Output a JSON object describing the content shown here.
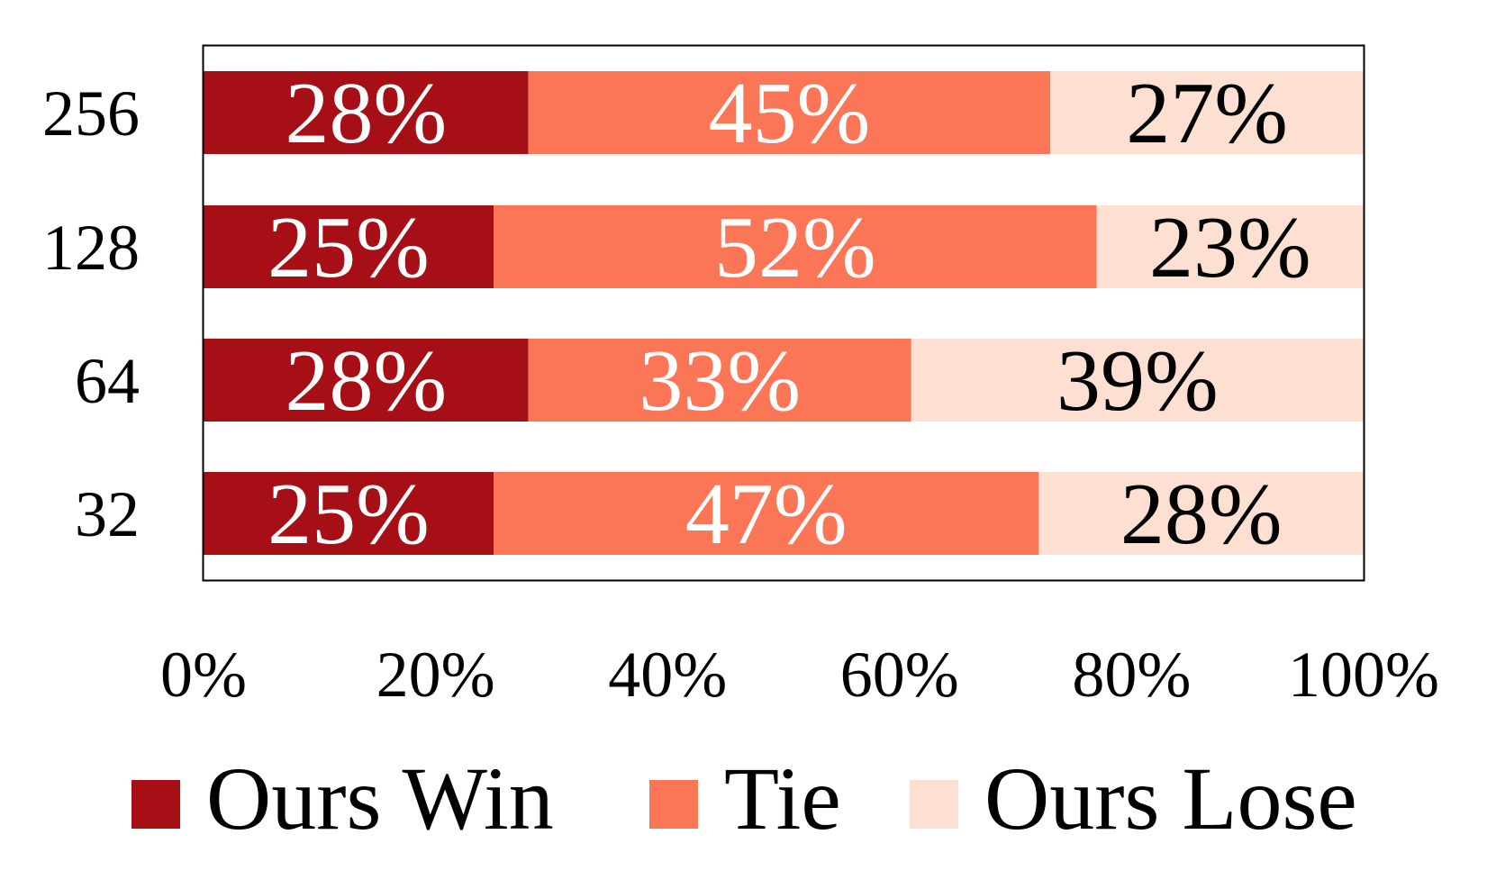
{
  "chart_data": {
    "type": "bar",
    "orientation": "horizontal",
    "stacked": true,
    "categories": [
      "256",
      "128",
      "64",
      "32"
    ],
    "series": [
      {
        "name": "Ours Win",
        "values": [
          28,
          25,
          28,
          25
        ],
        "color": "#a50f15",
        "label_color": "#ffffff"
      },
      {
        "name": "Tie",
        "values": [
          45,
          52,
          33,
          47
        ],
        "color": "#fb7656",
        "label_color": "#ffffff"
      },
      {
        "name": "Ours Lose",
        "values": [
          27,
          23,
          39,
          28
        ],
        "color": "#fee0d3",
        "label_color": "#000000"
      }
    ],
    "data_label_suffix": "%",
    "xlim": [
      0,
      100
    ],
    "xticks": [
      0,
      20,
      40,
      60,
      80,
      100
    ],
    "xtick_labels": [
      "0%",
      "20%",
      "40%",
      "60%",
      "80%",
      "100%"
    ],
    "title": "",
    "xlabel": "",
    "ylabel": "",
    "grid": false,
    "legend_position": "bottom"
  }
}
